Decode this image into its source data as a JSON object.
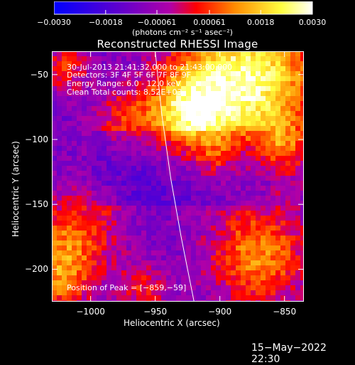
{
  "chart_data": {
    "type": "heatmap",
    "title": "Reconstructed RHESSI Image",
    "xlabel": "Heliocentric X (arcsec)",
    "ylabel": "Heliocentric Y (arcsec)",
    "xlim": [
      -1030,
      -835
    ],
    "ylim": [
      -225,
      -32
    ],
    "xticks": [
      -1000,
      -950,
      -900,
      -850
    ],
    "xtick_labels": [
      "−1000",
      "−950",
      "−900",
      "−850"
    ],
    "yticks": [
      -50,
      -100,
      -150,
      -200
    ],
    "ytick_labels": [
      "−50",
      "−100",
      "−150",
      "−200"
    ],
    "colorbar": {
      "range": [
        -0.003,
        0.003
      ],
      "ticks": [
        -0.003,
        -0.0018,
        -0.00061,
        0.00061,
        0.0018,
        0.003
      ],
      "tick_labels": [
        "−0.0030",
        "−0.0018",
        "−0.00061",
        "0.00061",
        "0.0018",
        "0.0030"
      ],
      "colors": [
        "#0000ff",
        "#6a00c8",
        "#b000b0",
        "#ff0000",
        "#ff8c00",
        "#ffff40",
        "#ffffff"
      ]
    },
    "units_label": "(photons cm⁻² s⁻¹ asec⁻²)",
    "annotations": [
      "30-Jul-2013 21:41:32.000 to 21:43:00.000",
      "Detectors: 3F 4F 5F 6F 7F 8F 9F",
      "Energy Range: 6.0 - 12.0 keV",
      "Clean     Total counts: 8.52E+03"
    ],
    "peak_label": "Position of Peak = [−859,−59]",
    "peak": [
      -859,
      -59
    ],
    "grid": false,
    "limb_curve": [
      [
        -950,
        -32
      ],
      [
        -945,
        -80
      ],
      [
        -938,
        -130
      ],
      [
        -930,
        -175
      ],
      [
        -920,
        -225
      ]
    ]
  },
  "footer": {
    "date_stamp": "15−May−2022 22:30"
  }
}
